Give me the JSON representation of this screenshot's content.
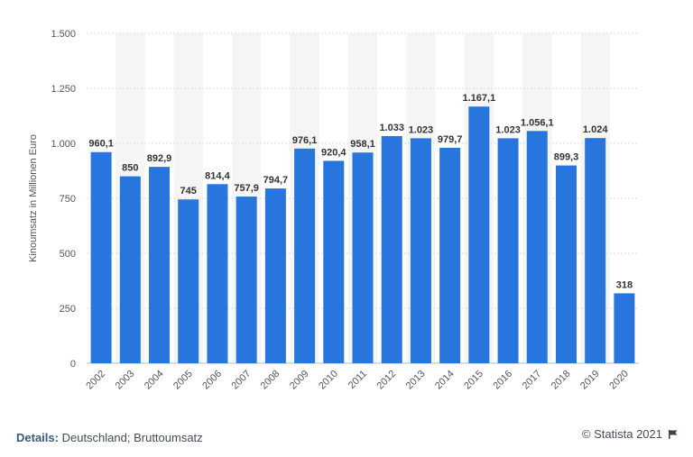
{
  "chart_data": {
    "type": "bar",
    "categories": [
      "2002",
      "2003",
      "2004",
      "2005",
      "2006",
      "2007",
      "2008",
      "2009",
      "2010",
      "2011",
      "2012",
      "2013",
      "2014",
      "2015",
      "2016",
      "2017",
      "2018",
      "2019",
      "2020"
    ],
    "values": [
      960.1,
      850,
      892.9,
      745,
      814.4,
      757.9,
      794.7,
      976.1,
      920.4,
      958.1,
      1033,
      1023,
      979.7,
      1167.1,
      1023,
      1056.1,
      899.3,
      1024,
      318
    ],
    "data_labels": [
      "960,1",
      "850",
      "892,9",
      "745",
      "814,4",
      "757,9",
      "794,7",
      "976,1",
      "920,4",
      "958,1",
      "1.033",
      "1.023",
      "979,7",
      "1.167,1",
      "1.023",
      "1.056,1",
      "899,3",
      "1.024",
      "318"
    ],
    "ylabel": "Kinoumsatz in Millionen Euro",
    "ylim": [
      0,
      1500
    ],
    "yticks": [
      0,
      250,
      500,
      750,
      1000,
      1250,
      1500
    ],
    "ytick_labels": [
      "0",
      "250",
      "500",
      "750",
      "1.000",
      "1.250",
      "1.500"
    ],
    "grid": true,
    "bar_color": "#2876dd",
    "band_color": "#f5f5f5"
  },
  "footer": {
    "details_label": "Details:",
    "details_text": "Deutschland; Bruttoumsatz",
    "credit": "© Statista 2021",
    "credit_icon": "flag-icon"
  }
}
